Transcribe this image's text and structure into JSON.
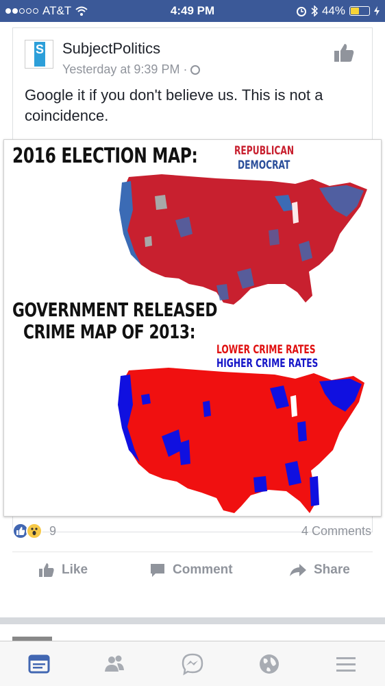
{
  "status_bar": {
    "carrier": "AT&T",
    "time": "4:49 PM",
    "battery": "44%",
    "battery_level": 0.44
  },
  "post": {
    "page_name": "SubjectPolitics",
    "timestamp": "Yesterday at 9:39 PM",
    "separator": "·",
    "text": "Google it if you don't believe us. This is not a coincidence.",
    "avatar_letter": "S",
    "image": {
      "heading_top": "2016 ELECTION MAP:",
      "legend_top_1": "REPUBLICAN",
      "legend_top_2": "DEMOCRAT",
      "heading_bottom_1": "GOVERNMENT RELEASED",
      "heading_bottom_2": "CRIME MAP OF 2013:",
      "legend_bottom_1": "LOWER CRIME RATES",
      "legend_bottom_2": "HIGHER CRIME RATES",
      "colors": {
        "republican": "#c8202f",
        "democrat": "#3b6bb5",
        "lower_crime": "#f01010",
        "higher_crime": "#1010e0"
      }
    }
  },
  "engagement": {
    "reaction_count": "9",
    "comments": "4 Comments",
    "reaction_icons": [
      "like-reaction-icon",
      "wow-reaction-icon"
    ]
  },
  "actions": {
    "like": "Like",
    "comment": "Comment",
    "share": "Share"
  },
  "tab_bar": {
    "tabs": [
      "news-feed-icon",
      "friends-icon",
      "messenger-icon",
      "globe-icon",
      "menu-icon"
    ],
    "active": "news-feed-icon",
    "active_color": "#4267b2",
    "inactive_color": "#a8acb3"
  }
}
